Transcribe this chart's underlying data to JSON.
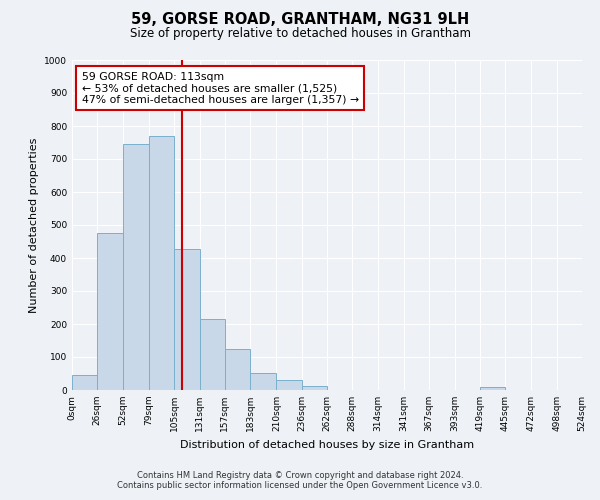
{
  "title": "59, GORSE ROAD, GRANTHAM, NG31 9LH",
  "subtitle": "Size of property relative to detached houses in Grantham",
  "xlabel": "Distribution of detached houses by size in Grantham",
  "ylabel": "Number of detached properties",
  "bin_edges": [
    0,
    26,
    52,
    79,
    105,
    131,
    157,
    183,
    210,
    236,
    262,
    288,
    314,
    341,
    367,
    393,
    419,
    445,
    472,
    498,
    524
  ],
  "bar_heights": [
    44,
    477,
    744,
    770,
    428,
    215,
    124,
    51,
    29,
    13,
    0,
    0,
    0,
    0,
    0,
    0,
    8,
    0,
    0,
    0
  ],
  "bar_color": "#c8d8e8",
  "bar_edgecolor": "#7ab0cc",
  "vline_x": 113,
  "vline_color": "#cc0000",
  "annotation_text": "59 GORSE ROAD: 113sqm\n← 53% of detached houses are smaller (1,525)\n47% of semi-detached houses are larger (1,357) →",
  "annotation_box_edgecolor": "#cc0000",
  "annotation_box_facecolor": "#ffffff",
  "ylim": [
    0,
    1000
  ],
  "yticks": [
    0,
    100,
    200,
    300,
    400,
    500,
    600,
    700,
    800,
    900,
    1000
  ],
  "xtick_labels": [
    "0sqm",
    "26sqm",
    "52sqm",
    "79sqm",
    "105sqm",
    "131sqm",
    "157sqm",
    "183sqm",
    "210sqm",
    "236sqm",
    "262sqm",
    "288sqm",
    "314sqm",
    "341sqm",
    "367sqm",
    "393sqm",
    "419sqm",
    "445sqm",
    "472sqm",
    "498sqm",
    "524sqm"
  ],
  "footer_line1": "Contains HM Land Registry data © Crown copyright and database right 2024.",
  "footer_line2": "Contains public sector information licensed under the Open Government Licence v3.0.",
  "background_color": "#eef2f7",
  "grid_color": "#ffffff",
  "title_fontsize": 10.5,
  "subtitle_fontsize": 8.5,
  "axis_label_fontsize": 8,
  "tick_fontsize": 6.5,
  "footer_fontsize": 6,
  "annot_fontsize": 7.8
}
